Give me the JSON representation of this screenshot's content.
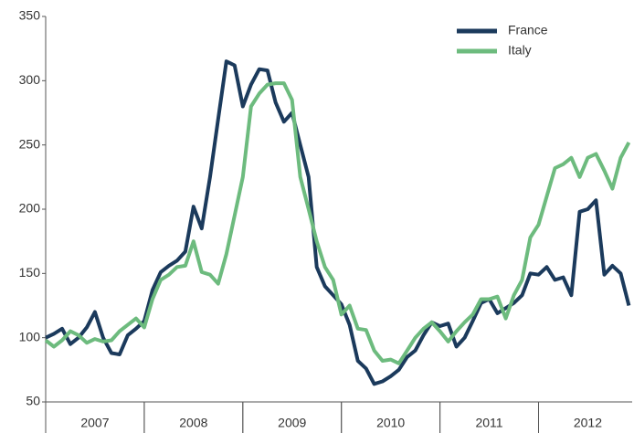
{
  "chart_data": {
    "type": "line",
    "x": [
      2007,
      2007.083,
      2007.167,
      2007.25,
      2007.333,
      2007.417,
      2007.5,
      2007.583,
      2007.667,
      2007.75,
      2007.833,
      2007.917,
      2008,
      2008.083,
      2008.167,
      2008.25,
      2008.333,
      2008.417,
      2008.5,
      2008.583,
      2008.667,
      2008.75,
      2008.833,
      2008.917,
      2009,
      2009.083,
      2009.167,
      2009.25,
      2009.333,
      2009.417,
      2009.5,
      2009.583,
      2009.667,
      2009.75,
      2009.833,
      2009.917,
      2010,
      2010.083,
      2010.167,
      2010.25,
      2010.333,
      2010.417,
      2010.5,
      2010.583,
      2010.667,
      2010.75,
      2010.833,
      2010.917,
      2011,
      2011.083,
      2011.167,
      2011.25,
      2011.333,
      2011.417,
      2011.5,
      2011.583,
      2011.667,
      2011.75,
      2011.833,
      2011.917,
      2012,
      2012.083,
      2012.167,
      2012.25,
      2012.333,
      2012.417,
      2012.5,
      2012.583,
      2012.667,
      2012.75,
      2012.833,
      2012.917
    ],
    "series": [
      {
        "name": "France",
        "color": "#1b3a5c",
        "values": [
          100,
          103,
          107,
          95,
          100,
          108,
          120,
          100,
          88,
          87,
          102,
          107,
          113,
          137,
          151,
          156,
          160,
          167,
          202,
          185,
          225,
          270,
          315,
          312,
          280,
          297,
          309,
          308,
          283,
          268,
          275,
          250,
          225,
          155,
          140,
          133,
          126,
          110,
          82,
          76,
          64,
          66,
          70,
          75,
          85,
          90,
          102,
          112,
          109,
          111,
          93,
          100,
          113,
          127,
          130,
          119,
          123,
          127,
          133,
          150,
          149,
          155,
          145,
          147,
          133,
          198,
          200,
          207,
          149,
          156,
          150,
          125
        ]
      },
      {
        "name": "Italy",
        "color": "#6dbb7e",
        "values": [
          98,
          93,
          98,
          105,
          102,
          96,
          99,
          97,
          98,
          105,
          110,
          115,
          108,
          130,
          145,
          149,
          155,
          156,
          175,
          151,
          149,
          142,
          165,
          195,
          225,
          280,
          290,
          297,
          298,
          298,
          285,
          225,
          200,
          175,
          155,
          145,
          118,
          125,
          107,
          106,
          90,
          82,
          83,
          80,
          90,
          100,
          107,
          112,
          105,
          97,
          105,
          112,
          118,
          130,
          130,
          132,
          115,
          133,
          145,
          178,
          188,
          210,
          232,
          235,
          240,
          225,
          240,
          243,
          230,
          216,
          240,
          252
        ]
      }
    ],
    "xlim": [
      2007,
      2012.95
    ],
    "xticks": [
      {
        "value": 2007.5,
        "label": "2007"
      },
      {
        "value": 2008.5,
        "label": "2008"
      },
      {
        "value": 2009.5,
        "label": "2009"
      },
      {
        "value": 2010.5,
        "label": "2010"
      },
      {
        "value": 2011.5,
        "label": "2011"
      },
      {
        "value": 2012.5,
        "label": "2012"
      }
    ],
    "ylim": [
      50,
      350
    ],
    "yticks": [
      50,
      100,
      150,
      200,
      250,
      300,
      350
    ],
    "legend": "upper-right"
  }
}
